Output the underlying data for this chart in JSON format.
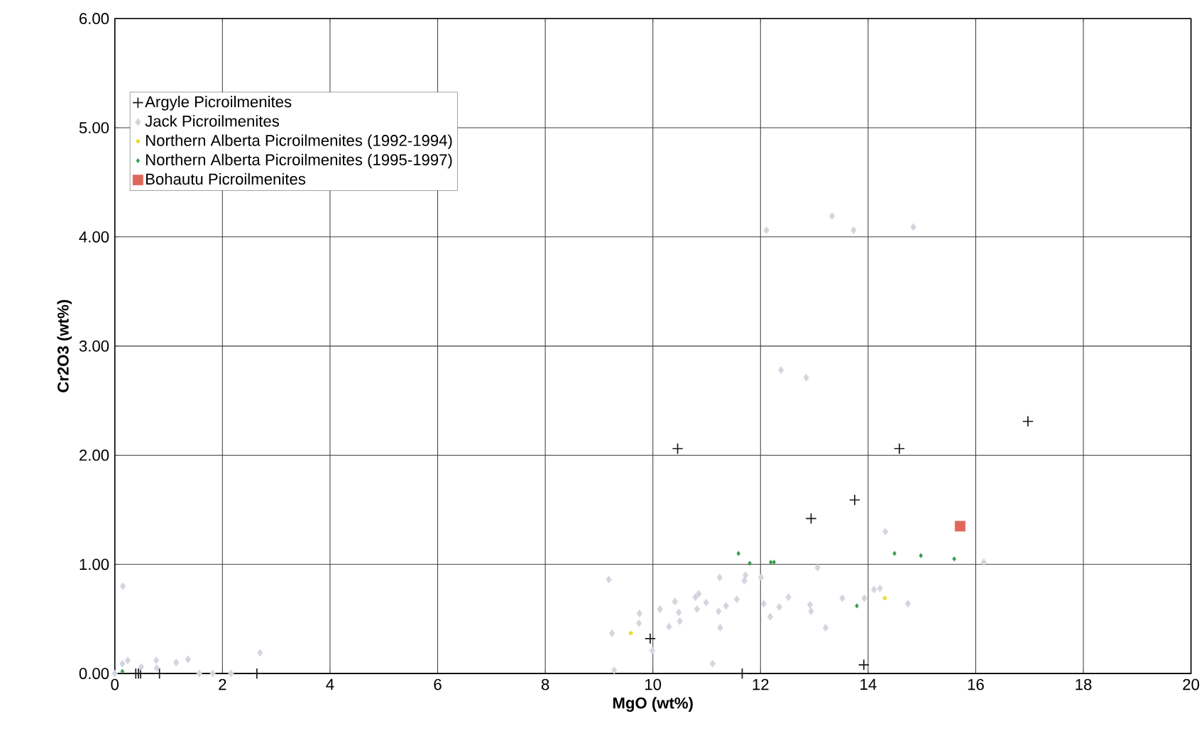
{
  "chart_data": {
    "type": "scatter",
    "xlabel": "MgO (wt%)",
    "ylabel": "Cr2O3 (wt%)",
    "xlim": [
      0,
      20
    ],
    "ylim": [
      0,
      6
    ],
    "xticks": [
      0,
      2,
      4,
      6,
      8,
      10,
      12,
      14,
      16,
      18,
      20
    ],
    "yticks": [
      {
        "value": 0,
        "label": "0.00"
      },
      {
        "value": 1,
        "label": "1.00"
      },
      {
        "value": 2,
        "label": "2.00"
      },
      {
        "value": 3,
        "label": "3.00"
      },
      {
        "value": 4,
        "label": "4.00"
      },
      {
        "value": 5,
        "label": "5.00"
      },
      {
        "value": 6,
        "label": "6.00"
      }
    ],
    "grid": true,
    "legend": "top left",
    "series": [
      {
        "name": "Argyle Picroilmenites",
        "color": "#1a1a1a",
        "marker": "cross",
        "x": [
          10.46,
          14.58,
          16.97,
          13.75,
          12.94,
          9.95,
          13.92,
          11.66,
          2.64,
          0.83,
          0.39,
          0.44,
          0.48
        ],
        "values": [
          2.06,
          2.06,
          2.31,
          1.59,
          1.42,
          0.32,
          0.08,
          0,
          0,
          0,
          0,
          0,
          0
        ]
      },
      {
        "name": "Jack Picroilmenites",
        "color": "#d3d6de",
        "marker": "diamond",
        "x": [
          0.15,
          13.33,
          12.11,
          13.73,
          14.84,
          12.38,
          12.85,
          14.32,
          16.15,
          9.18,
          9.24,
          9.28,
          9.75,
          9.74,
          9.99,
          10.13,
          10.3,
          10.41,
          10.48,
          10.5,
          10.79,
          10.85,
          10.82,
          10.99,
          11.11,
          11.24,
          11.22,
          11.25,
          11.36,
          11.56,
          11.72,
          11.7,
          12.01,
          12.06,
          12.18,
          12.35,
          12.52,
          12.92,
          12.94,
          13.06,
          13.21,
          13.52,
          13.93,
          14.11,
          14.22,
          14.74,
          0,
          0.14,
          0.24,
          0.49,
          0.77,
          0.78,
          1.14,
          1.36,
          1.57,
          1.82,
          2.16,
          2.7
        ],
        "values": [
          0.8,
          4.19,
          4.06,
          4.06,
          4.09,
          2.78,
          2.71,
          1.3,
          1.02,
          0.86,
          0.37,
          0.03,
          0.55,
          0.46,
          0.21,
          0.59,
          0.43,
          0.66,
          0.56,
          0.48,
          0.7,
          0.73,
          0.59,
          0.65,
          0.09,
          0.88,
          0.57,
          0.42,
          0.62,
          0.68,
          0.9,
          0.85,
          0.88,
          0.64,
          0.52,
          0.61,
          0.7,
          0.63,
          0.57,
          0.97,
          0.42,
          0.69,
          0.69,
          0.77,
          0.78,
          0.64,
          0,
          0.09,
          0.12,
          0.06,
          0.12,
          0.05,
          0.1,
          0.13,
          0,
          0,
          0,
          0.19
        ]
      },
      {
        "name": "Northern Alberta Picroilmenites (1992-1994)",
        "color": "#e8dc30",
        "marker": "circle",
        "x": [
          9.59,
          14.31
        ],
        "values": [
          0.37,
          0.69
        ]
      },
      {
        "name": "Northern Alberta Picroilmenites (1995-1997)",
        "color": "#3a9a4a",
        "marker": "diamond",
        "x": [
          11.59,
          11.8,
          12.19,
          12.25,
          14.49,
          14.98,
          15.6,
          13.79,
          0.14
        ],
        "values": [
          1.1,
          1.01,
          1.02,
          1.02,
          1.1,
          1.08,
          1.05,
          0.62,
          0.02
        ]
      },
      {
        "name": "Bohautu Picroilmenites",
        "color": "#e0665c",
        "marker": "square",
        "x": [
          15.71
        ],
        "values": [
          1.35
        ]
      }
    ]
  }
}
